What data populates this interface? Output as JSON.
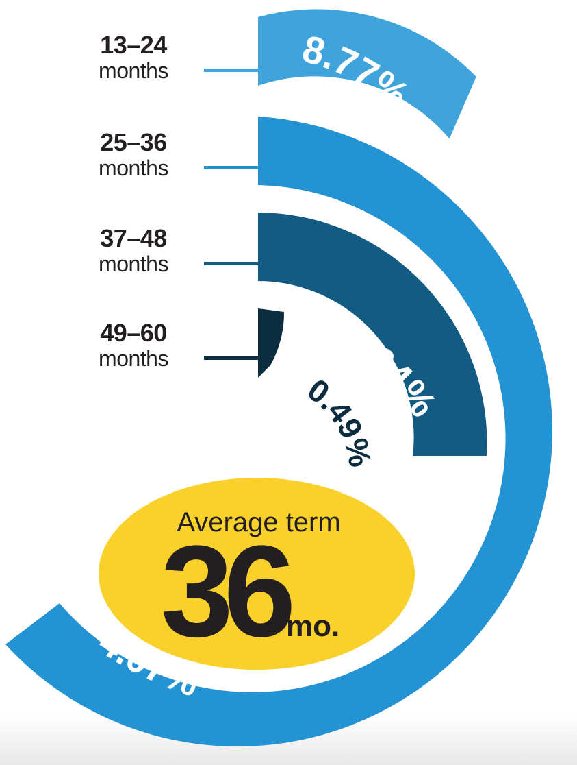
{
  "chart_data": {
    "type": "radial-bar",
    "categories": [
      {
        "range": "13–24",
        "unit": "months"
      },
      {
        "range": "25–36",
        "unit": "months"
      },
      {
        "range": "37–48",
        "unit": "months"
      },
      {
        "range": "49–60",
        "unit": "months"
      }
    ],
    "values": [
      8.77,
      64.07,
      26.64,
      0.49
    ],
    "value_labels": [
      "8.77%",
      "64.07%",
      "26.64%",
      "0.49%"
    ],
    "colors": [
      "#3fa4dc",
      "#2393d4",
      "#125b82",
      "#0c2c40"
    ]
  },
  "summary": {
    "title": "Average term",
    "value": "36",
    "unit": "mo.",
    "background_color": "#f9d12a"
  }
}
